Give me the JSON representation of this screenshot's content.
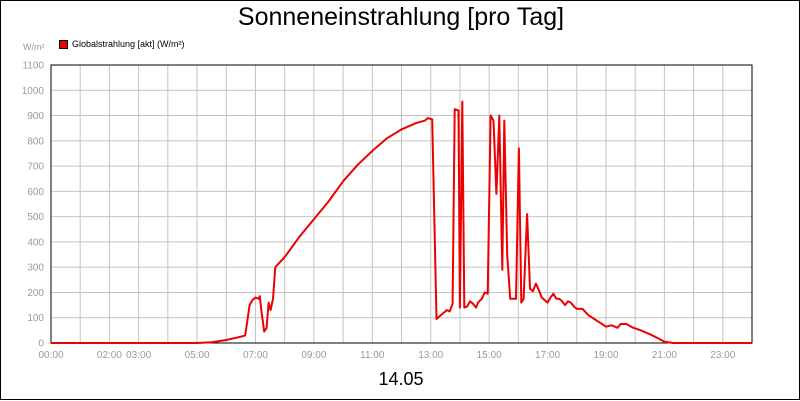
{
  "chart_data": {
    "type": "line",
    "title": "Sonneneinstrahlung [pro Tag]",
    "y_unit": "W/m²",
    "xlabel": "14.05",
    "ylim": [
      0,
      1100
    ],
    "xlim_hours": [
      0,
      24
    ],
    "grid": true,
    "legend_position": "top-left",
    "y_ticks": [
      0,
      100,
      200,
      300,
      400,
      500,
      600,
      700,
      800,
      900,
      1000,
      1100
    ],
    "x_ticks": [
      {
        "h": 0,
        "label": "00:00"
      },
      {
        "h": 2,
        "label": "02:00"
      },
      {
        "h": 3,
        "label": "03:00"
      },
      {
        "h": 5,
        "label": "05:00"
      },
      {
        "h": 7,
        "label": "07:00"
      },
      {
        "h": 9,
        "label": "09:00"
      },
      {
        "h": 11,
        "label": "11:00"
      },
      {
        "h": 13,
        "label": "13:00"
      },
      {
        "h": 15,
        "label": "15:00"
      },
      {
        "h": 17,
        "label": "17:00"
      },
      {
        "h": 19,
        "label": "19:00"
      },
      {
        "h": 21,
        "label": "21:00"
      },
      {
        "h": 23,
        "label": "23:00"
      }
    ],
    "series": [
      {
        "name": "Globalstrahlung [akt] (W/m²)",
        "color": "#ee0000",
        "points": [
          [
            0,
            0
          ],
          [
            5.0,
            0
          ],
          [
            5.5,
            3
          ],
          [
            6.0,
            12
          ],
          [
            6.5,
            25
          ],
          [
            6.65,
            30
          ],
          [
            6.8,
            150
          ],
          [
            6.9,
            170
          ],
          [
            7.0,
            180
          ],
          [
            7.1,
            175
          ],
          [
            7.15,
            185
          ],
          [
            7.2,
            130
          ],
          [
            7.3,
            45
          ],
          [
            7.38,
            60
          ],
          [
            7.45,
            160
          ],
          [
            7.52,
            130
          ],
          [
            7.6,
            175
          ],
          [
            7.68,
            300
          ],
          [
            8.0,
            340
          ],
          [
            8.5,
            420
          ],
          [
            9.0,
            490
          ],
          [
            9.5,
            560
          ],
          [
            10.0,
            640
          ],
          [
            10.5,
            705
          ],
          [
            11.0,
            760
          ],
          [
            11.5,
            810
          ],
          [
            12.0,
            845
          ],
          [
            12.5,
            870
          ],
          [
            12.8,
            880
          ],
          [
            12.9,
            890
          ],
          [
            13.05,
            885
          ],
          [
            13.2,
            95
          ],
          [
            13.4,
            115
          ],
          [
            13.55,
            130
          ],
          [
            13.65,
            125
          ],
          [
            13.75,
            155
          ],
          [
            13.82,
            925
          ],
          [
            13.95,
            920
          ],
          [
            14.0,
            140
          ],
          [
            14.08,
            955
          ],
          [
            14.15,
            140
          ],
          [
            14.25,
            145
          ],
          [
            14.35,
            165
          ],
          [
            14.45,
            155
          ],
          [
            14.55,
            140
          ],
          [
            14.62,
            160
          ],
          [
            14.75,
            175
          ],
          [
            14.85,
            200
          ],
          [
            14.95,
            195
          ],
          [
            15.05,
            900
          ],
          [
            15.15,
            880
          ],
          [
            15.25,
            590
          ],
          [
            15.35,
            900
          ],
          [
            15.45,
            290
          ],
          [
            15.52,
            880
          ],
          [
            15.62,
            350
          ],
          [
            15.72,
            175
          ],
          [
            15.82,
            175
          ],
          [
            15.92,
            175
          ],
          [
            16.02,
            770
          ],
          [
            16.1,
            160
          ],
          [
            16.18,
            175
          ],
          [
            16.3,
            510
          ],
          [
            16.4,
            215
          ],
          [
            16.5,
            205
          ],
          [
            16.6,
            235
          ],
          [
            16.7,
            210
          ],
          [
            16.8,
            180
          ],
          [
            16.9,
            170
          ],
          [
            17.0,
            160
          ],
          [
            17.1,
            180
          ],
          [
            17.2,
            195
          ],
          [
            17.3,
            175
          ],
          [
            17.4,
            175
          ],
          [
            17.5,
            165
          ],
          [
            17.6,
            150
          ],
          [
            17.7,
            165
          ],
          [
            17.8,
            160
          ],
          [
            17.9,
            145
          ],
          [
            18.0,
            135
          ],
          [
            18.2,
            135
          ],
          [
            18.4,
            110
          ],
          [
            18.6,
            95
          ],
          [
            18.8,
            80
          ],
          [
            19.0,
            65
          ],
          [
            19.2,
            70
          ],
          [
            19.4,
            60
          ],
          [
            19.5,
            75
          ],
          [
            19.7,
            75
          ],
          [
            19.9,
            62
          ],
          [
            20.2,
            50
          ],
          [
            20.5,
            35
          ],
          [
            20.8,
            18
          ],
          [
            21.0,
            5
          ],
          [
            21.3,
            0
          ],
          [
            24,
            0
          ]
        ]
      }
    ]
  }
}
